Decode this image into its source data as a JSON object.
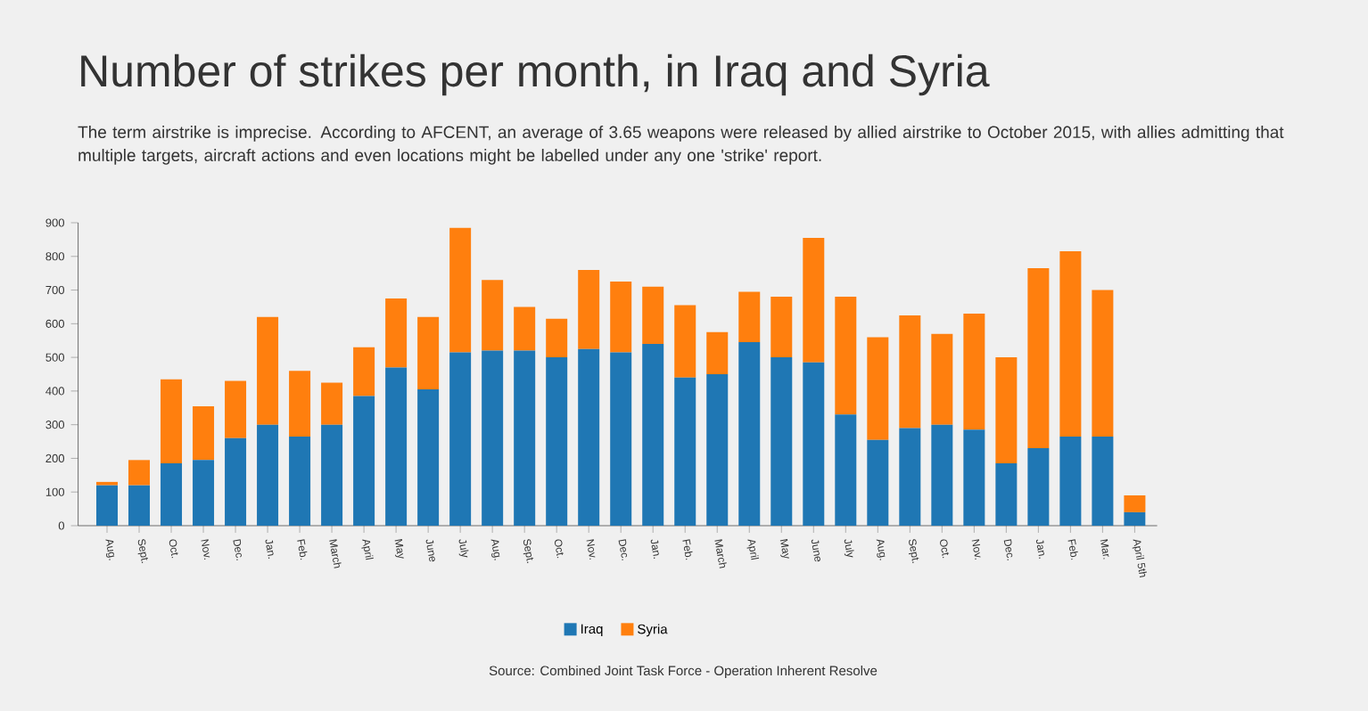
{
  "chart_data": {
    "type": "bar",
    "stacked": true,
    "title": "Number of strikes per month, in Iraq and Syria",
    "subtitle": "The term airstrike is imprecise. According to AFCENT, an average of 3.65 weapons were released by allied airstrike to October 2015, with allies admitting that multiple targets, aircraft actions and even locations might be labelled under any one 'strike' report.",
    "annotations": [
      "Source: Combined Joint Task Force - Operation Inherent Resolve"
    ],
    "categories": [
      "Aug.",
      "Sept.",
      "Oct.",
      "Nov.",
      "Dec.",
      "Jan.",
      "Feb.",
      "March",
      "April",
      "May",
      "June",
      "July",
      "Aug.",
      "Sept.",
      "Oct.",
      "Nov.",
      "Dec.",
      "Jan.",
      "Feb.",
      "March",
      "April",
      "May",
      "June",
      "July",
      "Aug.",
      "Sept.",
      "Oct.",
      "Nov.",
      "Dec.",
      "Jan.",
      "Feb.",
      "Mar.",
      "April 5th"
    ],
    "series": [
      {
        "name": "Iraq",
        "color": "#1f77b4",
        "values": [
          120,
          120,
          185,
          195,
          260,
          300,
          265,
          300,
          385,
          470,
          405,
          515,
          520,
          520,
          500,
          525,
          515,
          540,
          440,
          450,
          545,
          500,
          485,
          330,
          255,
          290,
          300,
          285,
          185,
          230,
          265,
          265,
          40
        ]
      },
      {
        "name": "Syria",
        "color": "#ff7f0e",
        "values": [
          10,
          75,
          250,
          160,
          170,
          320,
          195,
          125,
          145,
          205,
          215,
          370,
          210,
          130,
          115,
          235,
          210,
          170,
          215,
          125,
          150,
          180,
          370,
          350,
          305,
          335,
          270,
          345,
          315,
          535,
          550,
          435,
          50
        ]
      }
    ],
    "ylim": [
      0,
      900
    ],
    "yticks": [
      0,
      100,
      200,
      300,
      400,
      500,
      600,
      700,
      800,
      900
    ],
    "grid": false,
    "legend": "bottom"
  }
}
